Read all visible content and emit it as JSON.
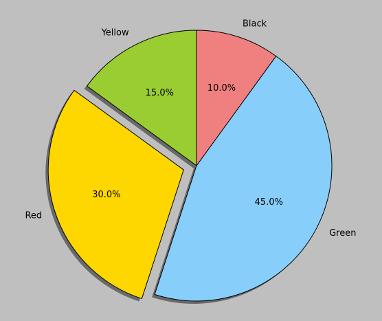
{
  "chart_data": {
    "type": "pie",
    "categories": [
      "Yellow",
      "Red",
      "Green",
      "Black"
    ],
    "values": [
      15,
      30,
      45,
      10
    ],
    "value_labels": [
      "15.0%",
      "30.0%",
      "45.0%",
      "10.0%"
    ],
    "colors": [
      "#9acd32",
      "#ffd700",
      "#87cefa",
      "#f08080"
    ],
    "explode": [
      false,
      true,
      false,
      false
    ],
    "shadow": true,
    "counterclock": true
  }
}
